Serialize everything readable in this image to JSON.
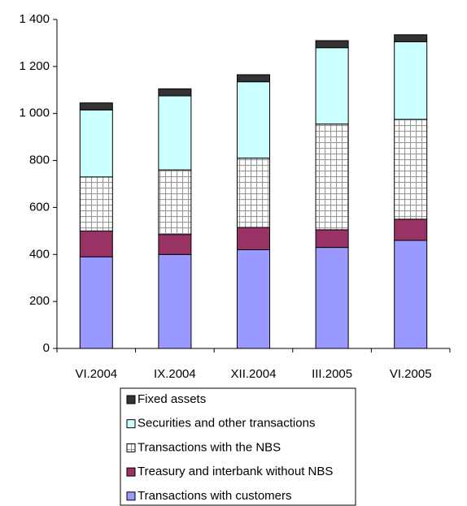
{
  "chart_data": {
    "type": "stacked_bar",
    "categories": [
      "VI.2004",
      "IX.2004",
      "XII.2004",
      "III.2005",
      "VI.2005"
    ],
    "series": [
      {
        "name": "Transactions with customers",
        "color": "#9999ff",
        "values": [
          390,
          400,
          420,
          430,
          460
        ]
      },
      {
        "name": "Treasury and interbank without NBS",
        "color": "#993366",
        "values": [
          110,
          85,
          95,
          75,
          90
        ]
      },
      {
        "name": "Transactions with the NBS",
        "color": "#ffffff",
        "values": [
          230,
          275,
          295,
          450,
          425
        ]
      },
      {
        "name": "Securities and other transactions",
        "color": "#ccffff",
        "values": [
          285,
          315,
          325,
          325,
          330
        ]
      },
      {
        "name": "Fixed assets",
        "color": "#333333",
        "values": [
          30,
          30,
          30,
          30,
          30
        ]
      }
    ],
    "ylim": [
      0,
      1400
    ],
    "yticks": [
      0,
      200,
      400,
      600,
      800,
      {
        "value": 1000,
        "label": "1 000"
      },
      {
        "value": 1200,
        "label": "1 200"
      },
      {
        "value": 1400,
        "label": "1 400"
      }
    ]
  }
}
